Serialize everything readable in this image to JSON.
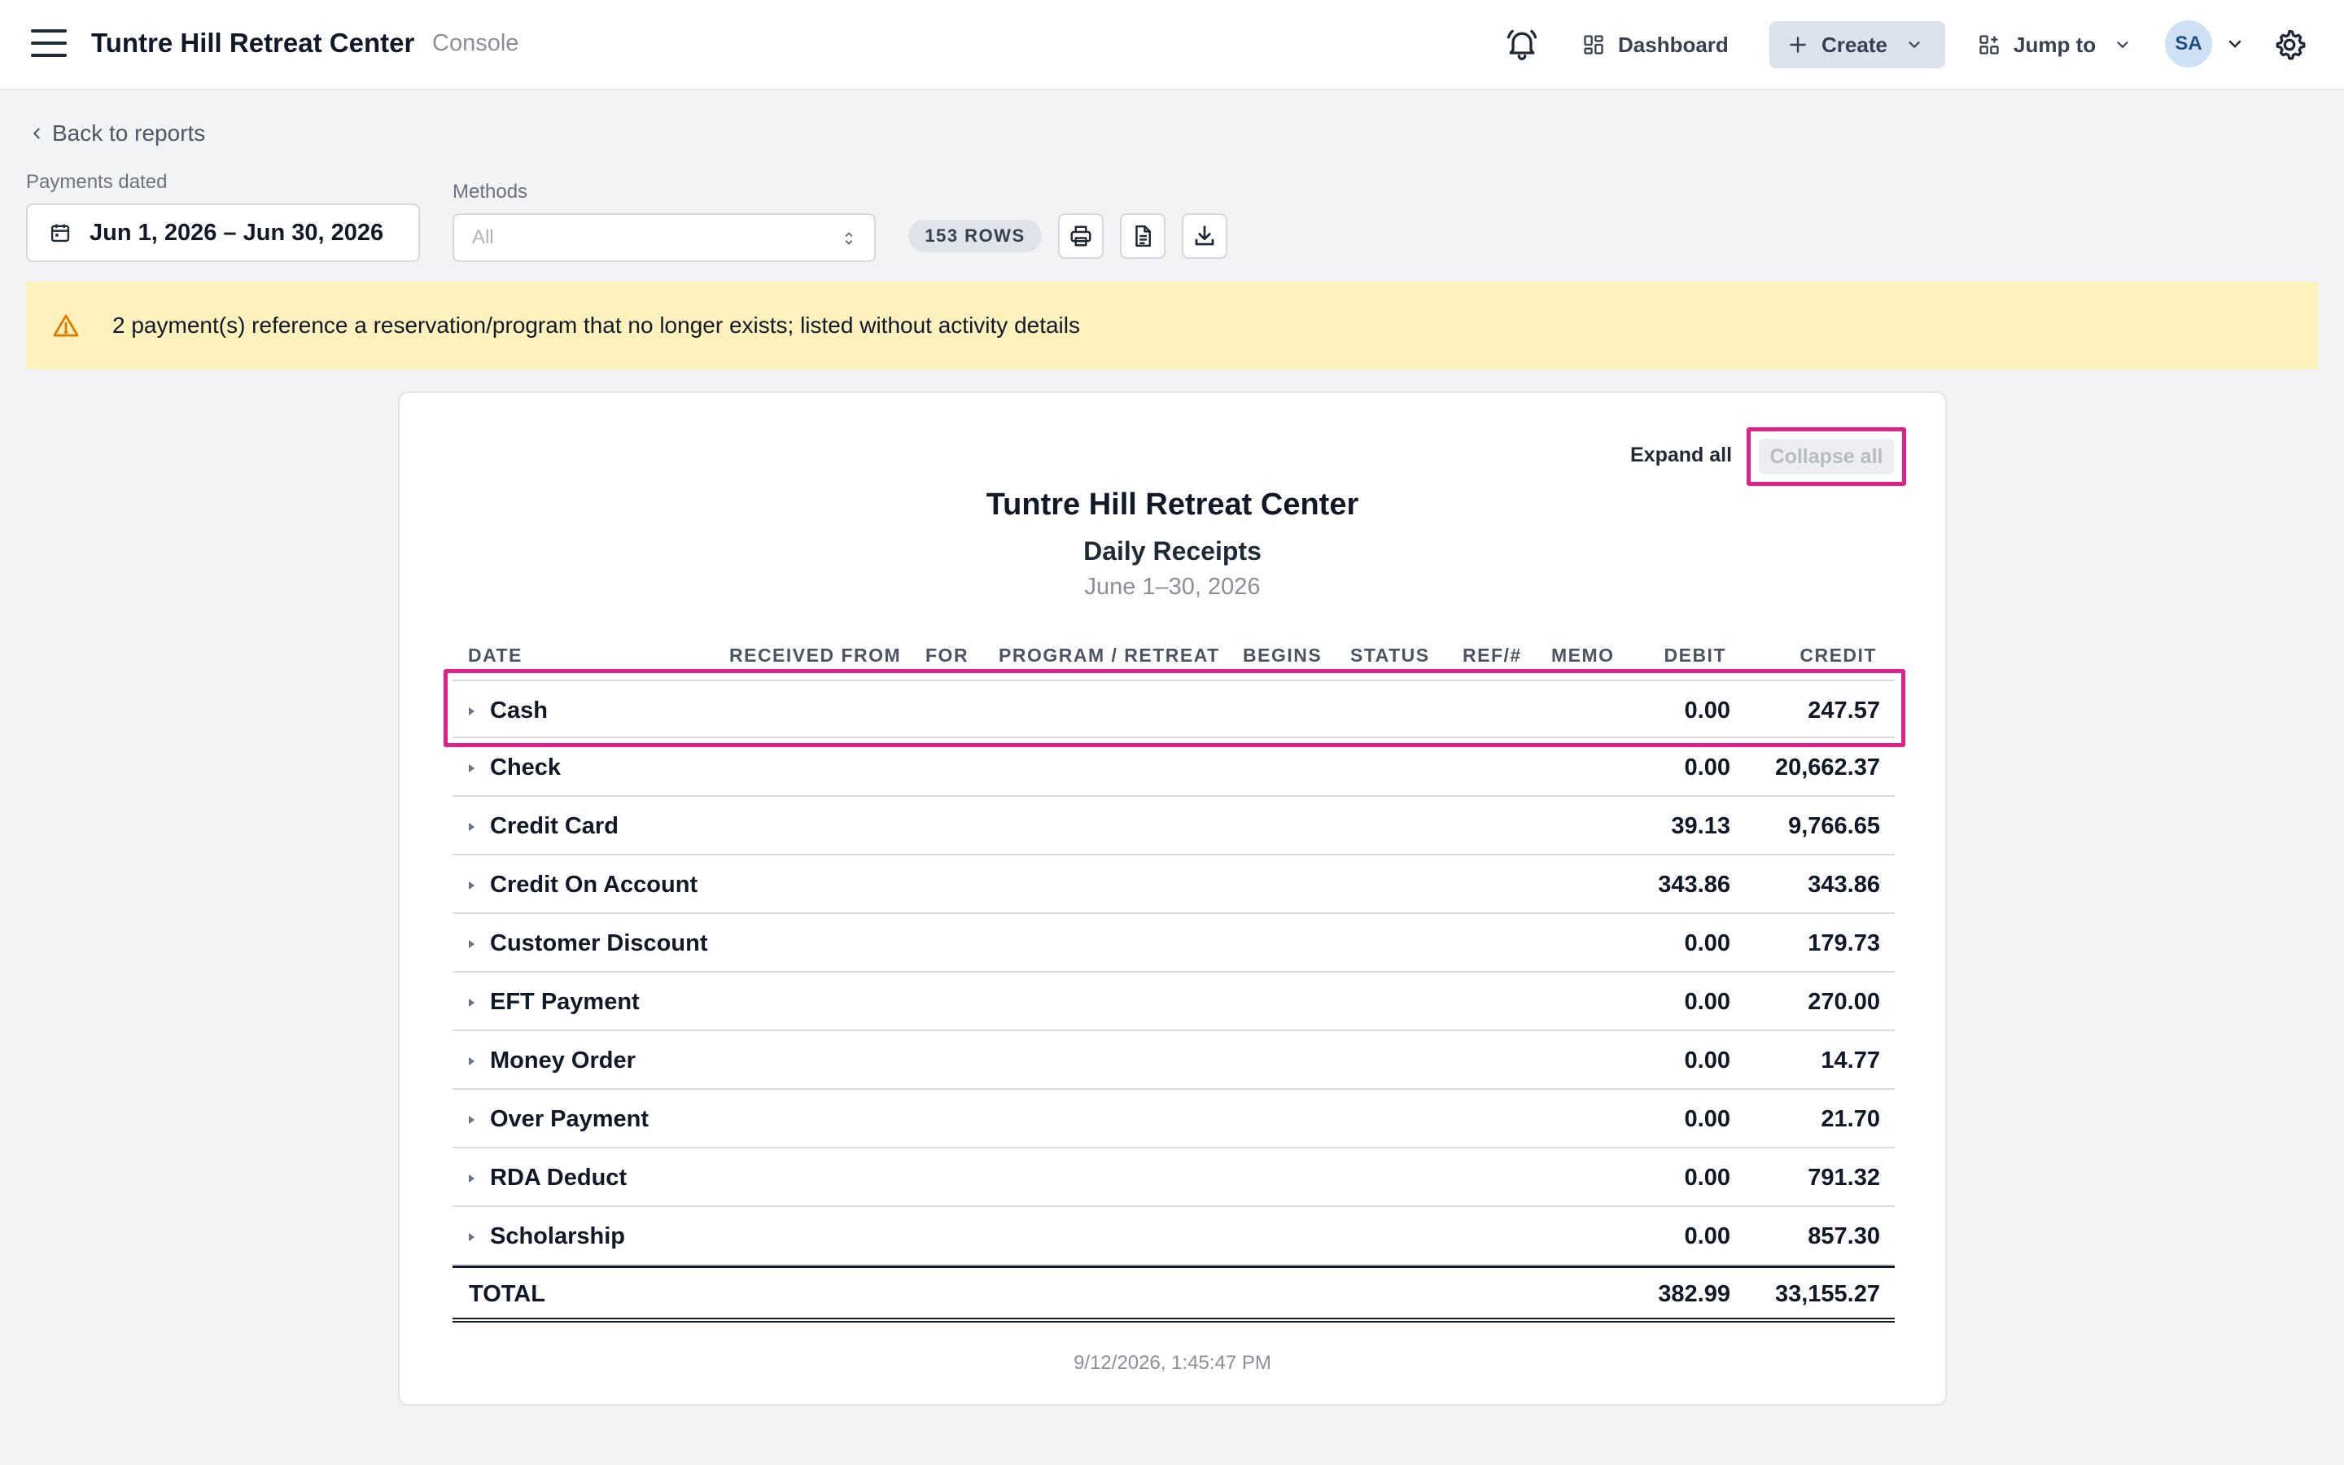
{
  "header": {
    "app_title": "Tuntre Hill Retreat Center",
    "app_subtitle": "Console",
    "dashboard_label": "Dashboard",
    "create_label": "Create",
    "jump_label": "Jump to",
    "avatar_initials": "SA"
  },
  "filters": {
    "back_label": "Back to reports",
    "payments_dated_label": "Payments dated",
    "date_range": "Jun 1, 2026 – Jun 30, 2026",
    "methods_label": "Methods",
    "methods_value": "All",
    "rows_badge": "153 ROWS"
  },
  "warning": {
    "text": "2 payment(s) reference a reservation/program that no longer exists; listed without activity details"
  },
  "report": {
    "expand_all": "Expand all",
    "collapse_all": "Collapse all",
    "org": "Tuntre Hill Retreat Center",
    "title": "Daily Receipts",
    "range": "June 1–30, 2026",
    "columns": [
      "DATE",
      "RECEIVED FROM",
      "FOR",
      "PROGRAM / RETREAT",
      "BEGINS",
      "STATUS",
      "REF/#",
      "MEMO",
      "DEBIT",
      "CREDIT"
    ],
    "rows": [
      {
        "method": "Cash",
        "debit": "0.00",
        "credit": "247.57"
      },
      {
        "method": "Check",
        "debit": "0.00",
        "credit": "20,662.37"
      },
      {
        "method": "Credit Card",
        "debit": "39.13",
        "credit": "9,766.65"
      },
      {
        "method": "Credit On Account",
        "debit": "343.86",
        "credit": "343.86"
      },
      {
        "method": "Customer Discount",
        "debit": "0.00",
        "credit": "179.73"
      },
      {
        "method": "EFT Payment",
        "debit": "0.00",
        "credit": "270.00"
      },
      {
        "method": "Money Order",
        "debit": "0.00",
        "credit": "14.77"
      },
      {
        "method": "Over Payment",
        "debit": "0.00",
        "credit": "21.70"
      },
      {
        "method": "RDA Deduct",
        "debit": "0.00",
        "credit": "791.32"
      },
      {
        "method": "Scholarship",
        "debit": "0.00",
        "credit": "857.30"
      }
    ],
    "total_label": "TOTAL",
    "total_debit": "382.99",
    "total_credit": "33,155.27",
    "generated_at": "9/12/2026, 1:45:47 PM"
  },
  "colors": {
    "highlight": "#e0218a",
    "warning_bg": "#fdf2bd",
    "warning_icon": "#e07b00"
  }
}
